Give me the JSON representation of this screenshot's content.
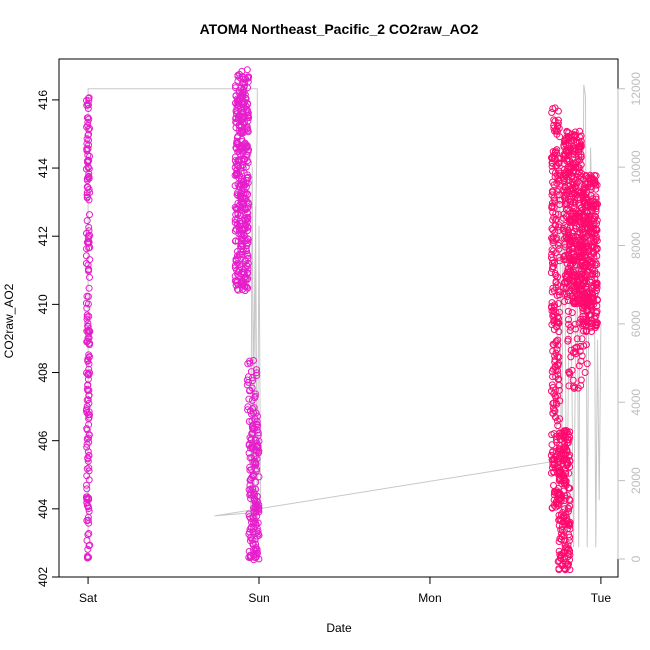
{
  "chart_data": {
    "type": "scatter",
    "title": "ATOM4 Northeast_Pacific_2 CO2raw_AO2",
    "xlabel": "Date",
    "ylabel": "CO2raw_AO2",
    "x_ticks": [
      "Sat",
      "Sun",
      "Mon",
      "Tue"
    ],
    "x_range_days": [
      -0.17,
      3.1
    ],
    "ylim": [
      402,
      417.2
    ],
    "y_ticks": [
      402,
      404,
      406,
      408,
      410,
      412,
      414,
      416
    ],
    "y2lim": [
      0,
      12300
    ],
    "y2_ticks": [
      0,
      2000,
      4000,
      6000,
      8000,
      10000,
      12000
    ],
    "grid": false,
    "colors": {
      "points_a": "#e61ecb",
      "points_b": "#ff0a6e",
      "secondary_line": "#c8c8c8",
      "axis": "#000000",
      "right_axis": "#bdbdbd"
    },
    "secondary_line": {
      "axis": "right",
      "x": [
        0.0,
        0.0,
        0.99,
        0.99,
        0.95,
        0.96,
        0.97,
        0.98,
        0.99,
        1.0,
        1.01,
        0.74,
        2.74,
        2.75,
        2.76,
        2.77,
        2.78,
        2.79,
        2.8,
        2.82,
        2.84,
        2.86,
        2.87,
        2.88,
        2.89,
        2.9,
        2.91,
        2.92,
        2.93,
        2.94,
        2.95,
        2.96,
        2.97,
        2.98,
        2.99,
        3.0
      ],
      "y": [
        500,
        12000,
        12000,
        11200,
        300,
        10000,
        300,
        9000,
        400,
        8500,
        1200,
        1100,
        2500,
        10500,
        9000,
        300,
        9800,
        7000,
        300,
        8800,
        300,
        9200,
        300,
        8900,
        6200,
        12100,
        11800,
        300,
        7000,
        10500,
        8000,
        8600,
        300,
        5600,
        1500,
        6000
      ]
    },
    "series": [
      {
        "color_key": "points_a",
        "clusters": [
          {
            "x": [
              -0.01,
              0.01
            ],
            "y": [
              402.5,
              416.1
            ],
            "n": 190
          },
          {
            "x": [
              0.86,
              0.94
            ],
            "y": [
              410.4,
              416.9
            ],
            "n": 380
          },
          {
            "x": [
              0.93,
              0.99
            ],
            "y": [
              406.8,
              408.4
            ],
            "n": 30
          },
          {
            "x": [
              0.94,
              1.0
            ],
            "y": [
              402.5,
              406.8
            ],
            "n": 160
          }
        ]
      },
      {
        "color_key": "points_b",
        "clusters": [
          {
            "x": [
              2.71,
              2.76
            ],
            "y": [
              404.0,
              415.8
            ],
            "n": 260
          },
          {
            "x": [
              2.75,
              2.82
            ],
            "y": [
              402.2,
              406.3
            ],
            "n": 200
          },
          {
            "x": [
              2.78,
              2.89
            ],
            "y": [
              410.0,
              415.1
            ],
            "n": 380
          },
          {
            "x": [
              2.8,
              2.92
            ],
            "y": [
              407.4,
              412.0
            ],
            "n": 90
          },
          {
            "x": [
              2.89,
              2.98
            ],
            "y": [
              409.2,
              413.8
            ],
            "n": 330
          }
        ]
      }
    ]
  }
}
